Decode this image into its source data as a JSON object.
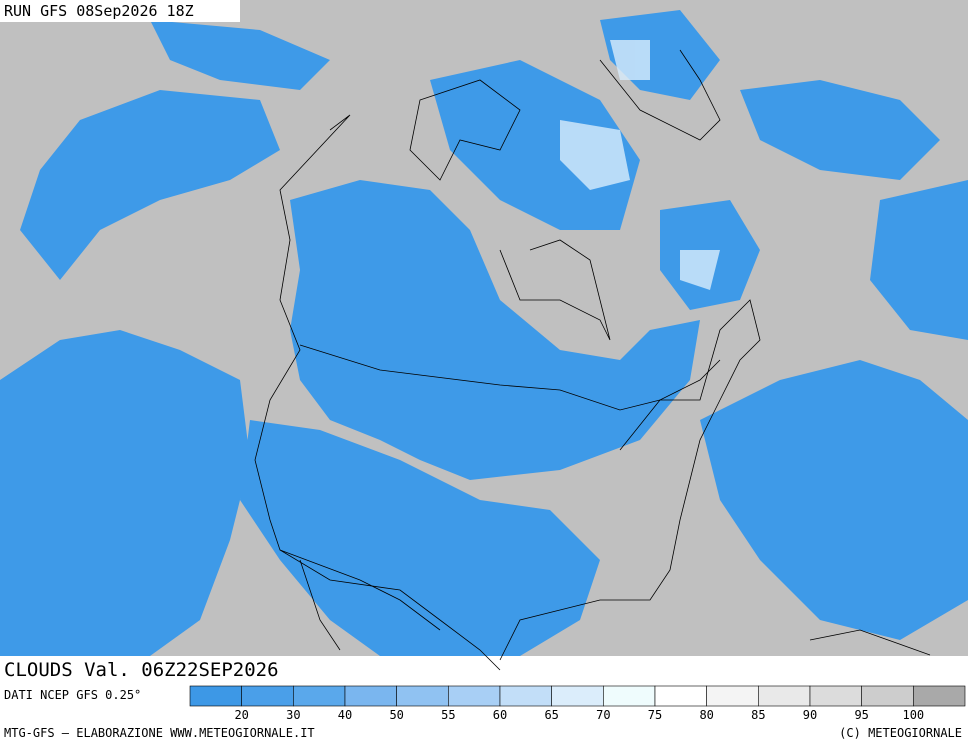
{
  "header": {
    "title": "RUN GFS 08Sep2026 18Z"
  },
  "map": {
    "label": "CLOUDS Val. 06Z22SEP2026"
  },
  "legend": {
    "source": "DATI NCEP GFS 0.25°",
    "labels": [
      20,
      30,
      40,
      50,
      55,
      60,
      65,
      70,
      75,
      80,
      85,
      90,
      95,
      100
    ],
    "colors": [
      "#3d98e6",
      "#4a9fe9",
      "#5aa8eb",
      "#7ab6ef",
      "#90c2f2",
      "#a8cff5",
      "#c2def8",
      "#dbedfb",
      "#effcfd",
      "#ffffff",
      "#f4f4f4",
      "#e9e9e9",
      "#dcdcdc",
      "#cdcdcd",
      "#a9a9a9"
    ]
  },
  "footer": {
    "left": "MTG-GFS — ELABORAZIONE WWW.METEOGIORNALE.IT",
    "right": "(C) METEOGIORNALE"
  }
}
